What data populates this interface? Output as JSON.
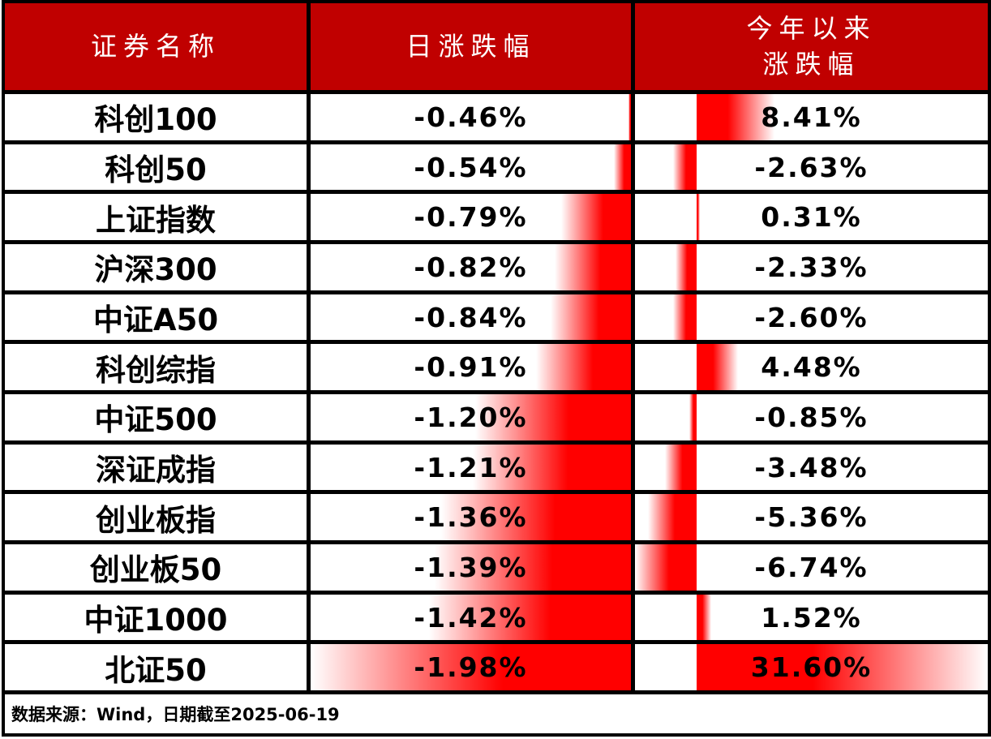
{
  "table": {
    "headers": {
      "name": "证券名称",
      "daily": "日涨跌幅",
      "ytd_line1": "今年以来",
      "ytd_line2": "涨跌幅"
    },
    "rows": [
      {
        "name": "科创100",
        "daily": "-0.46%",
        "daily_value": -0.46,
        "ytd": "8.41%",
        "ytd_value": 8.41
      },
      {
        "name": "科创50",
        "daily": "-0.54%",
        "daily_value": -0.54,
        "ytd": "-2.63%",
        "ytd_value": -2.63
      },
      {
        "name": "上证指数",
        "daily": "-0.79%",
        "daily_value": -0.79,
        "ytd": "0.31%",
        "ytd_value": 0.31
      },
      {
        "name": "沪深300",
        "daily": "-0.82%",
        "daily_value": -0.82,
        "ytd": "-2.33%",
        "ytd_value": -2.33
      },
      {
        "name": "中证A50",
        "daily": "-0.84%",
        "daily_value": -0.84,
        "ytd": "-2.60%",
        "ytd_value": -2.6
      },
      {
        "name": "科创综指",
        "daily": "-0.91%",
        "daily_value": -0.91,
        "ytd": "4.48%",
        "ytd_value": 4.48
      },
      {
        "name": "中证500",
        "daily": "-1.20%",
        "daily_value": -1.2,
        "ytd": "-0.85%",
        "ytd_value": -0.85
      },
      {
        "name": "深证成指",
        "daily": "-1.21%",
        "daily_value": -1.21,
        "ytd": "-3.48%",
        "ytd_value": -3.48
      },
      {
        "name": "创业板指",
        "daily": "-1.36%",
        "daily_value": -1.36,
        "ytd": "-5.36%",
        "ytd_value": -5.36
      },
      {
        "name": "创业板50",
        "daily": "-1.39%",
        "daily_value": -1.39,
        "ytd": "-6.74%",
        "ytd_value": -6.74
      },
      {
        "name": "中证1000",
        "daily": "-1.42%",
        "daily_value": -1.42,
        "ytd": "1.52%",
        "ytd_value": 1.52
      },
      {
        "name": "北证50",
        "daily": "-1.98%",
        "daily_value": -1.98,
        "ytd": "31.60%",
        "ytd_value": 31.6
      }
    ]
  },
  "footer": {
    "source": "数据来源：Wind，日期截至2025-06-19"
  },
  "colors": {
    "header_bg": "#C00000",
    "header_text": "#FFFFFF",
    "bar_red": "#FF0000",
    "border": "#000000",
    "body_text": "#000000",
    "background": "#FFFFFF"
  },
  "chart_data": {
    "type": "table",
    "categories": [
      "科创100",
      "科创50",
      "上证指数",
      "沪深300",
      "中证A50",
      "科创综指",
      "中证500",
      "深证成指",
      "创业板指",
      "创业板50",
      "中证1000",
      "北证50"
    ],
    "series": [
      {
        "name": "日涨跌幅",
        "values": [
          -0.46,
          -0.54,
          -0.79,
          -0.82,
          -0.84,
          -0.91,
          -1.2,
          -1.21,
          -1.36,
          -1.39,
          -1.42,
          -1.98
        ]
      },
      {
        "name": "今年以来涨跌幅",
        "values": [
          8.41,
          -2.63,
          0.31,
          -2.33,
          -2.6,
          4.48,
          -0.85,
          -3.48,
          -5.36,
          -6.74,
          1.52,
          31.6
        ]
      }
    ],
    "column_headers": [
      "证券名称",
      "日涨跌幅",
      "今年以来涨跌幅"
    ],
    "databars": {
      "daily_axis": "right-edge, bars extend left, gradient red fading to white",
      "daily_range": [
        -1.98,
        -0.46
      ],
      "ytd_axis_fraction_from_left": 0.176,
      "ytd_range": [
        -6.74,
        31.6
      ]
    },
    "footnote": "数据来源：Wind，日期截至2025-06-19"
  }
}
